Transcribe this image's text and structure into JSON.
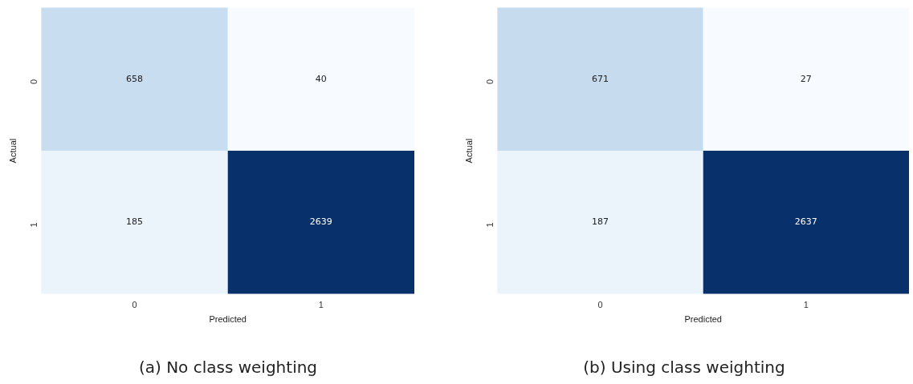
{
  "chart_data": [
    {
      "type": "heatmap",
      "title": "(a) No class weighting",
      "xlabel": "Predicted",
      "ylabel": "Actual",
      "categories": [
        "0",
        "1"
      ],
      "y_categories": [
        "0",
        "1"
      ],
      "cells": [
        [
          658,
          40
        ],
        [
          185,
          2639
        ]
      ],
      "data_labels": true
    },
    {
      "type": "heatmap",
      "title": "(b) Using class weighting",
      "xlabel": "Predicted",
      "ylabel": "Actual",
      "categories": [
        "0",
        "1"
      ],
      "y_categories": [
        "0",
        "1"
      ],
      "cells": [
        [
          671,
          27
        ],
        [
          187,
          2637
        ]
      ],
      "data_labels": true
    }
  ]
}
